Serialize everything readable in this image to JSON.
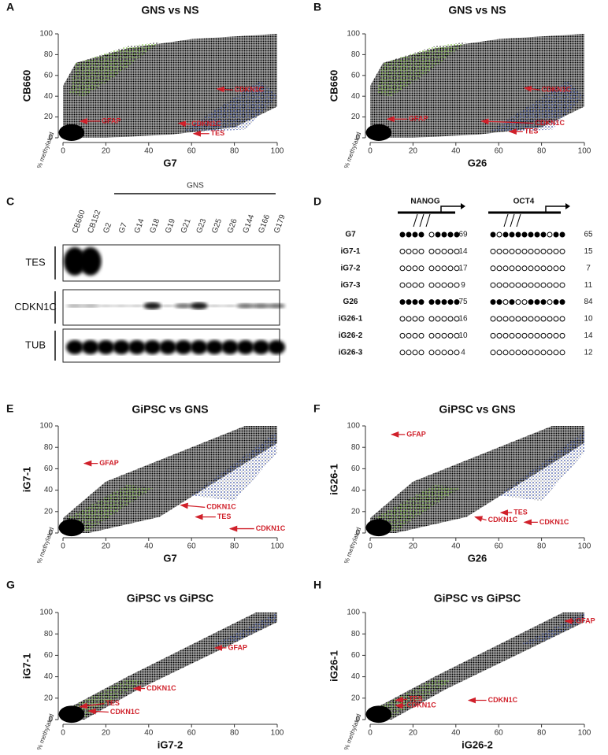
{
  "chart_data": [
    {
      "type": "scatter",
      "panel": "A",
      "title": "GNS vs NS",
      "xlabel": "G7",
      "ylabel": "CB660",
      "note": "% methylated",
      "xlim": [
        0,
        100
      ],
      "ylim": [
        0,
        100
      ],
      "xticks": [
        0,
        20,
        40,
        60,
        80,
        100
      ],
      "yticks": [
        0,
        20,
        40,
        60,
        80,
        100
      ],
      "annotations": [
        "GFAP",
        "CDKN1C",
        "CDKN1C",
        "TES"
      ]
    },
    {
      "type": "scatter",
      "panel": "B",
      "title": "GNS vs NS",
      "xlabel": "G26",
      "ylabel": "CB660",
      "note": "% methylated",
      "xlim": [
        0,
        100
      ],
      "ylim": [
        0,
        100
      ],
      "xticks": [
        0,
        20,
        40,
        60,
        80,
        100
      ],
      "yticks": [
        0,
        20,
        40,
        60,
        80,
        100
      ],
      "annotations": [
        "GFAP",
        "CDKN1C",
        "CDKN1C",
        "TES"
      ]
    },
    {
      "type": "scatter",
      "panel": "E",
      "title": "GiPSC vs GNS",
      "xlabel": "G7",
      "ylabel": "iG7-1",
      "note": "% methylated",
      "xlim": [
        0,
        100
      ],
      "ylim": [
        0,
        100
      ],
      "xticks": [
        0,
        20,
        40,
        60,
        80,
        100
      ],
      "yticks": [
        0,
        20,
        40,
        60,
        80,
        100
      ],
      "annotations": [
        "GFAP",
        "CDKN1C",
        "TES",
        "CDKN1C"
      ]
    },
    {
      "type": "scatter",
      "panel": "F",
      "title": "GiPSC vs GNS",
      "xlabel": "G26",
      "ylabel": "iG26-1",
      "note": "% methylated",
      "xlim": [
        0,
        100
      ],
      "ylim": [
        0,
        100
      ],
      "xticks": [
        0,
        20,
        40,
        60,
        80,
        100
      ],
      "yticks": [
        0,
        20,
        40,
        60,
        80,
        100
      ],
      "annotations": [
        "GFAP",
        "TES",
        "CDKN1C",
        "CDKN1C"
      ]
    },
    {
      "type": "scatter",
      "panel": "G",
      "title": "GiPSC vs GiPSC",
      "xlabel": "iG7-2",
      "ylabel": "iG7-1",
      "note": "% methylated",
      "xlim": [
        0,
        100
      ],
      "ylim": [
        0,
        100
      ],
      "xticks": [
        0,
        20,
        40,
        60,
        80,
        100
      ],
      "yticks": [
        0,
        20,
        40,
        60,
        80,
        100
      ],
      "annotations": [
        "GFAP",
        "CDKN1C",
        "TES",
        "CDKN1C"
      ]
    },
    {
      "type": "scatter",
      "panel": "H",
      "title": "GiPSC vs GiPSC",
      "xlabel": "iG26-2",
      "ylabel": "iG26-1",
      "note": "% methylated",
      "xlim": [
        0,
        100
      ],
      "ylim": [
        0,
        100
      ],
      "xticks": [
        0,
        20,
        40,
        60,
        80,
        100
      ],
      "yticks": [
        0,
        20,
        40,
        60,
        80,
        100
      ],
      "annotations": [
        "GFAP",
        "CDKN1C",
        "TES",
        "CDKN1C"
      ]
    }
  ],
  "blot": {
    "panel": "C",
    "group_label": "GNS",
    "lanes": [
      "CB660",
      "CB152",
      "G2",
      "G7",
      "G14",
      "G18",
      "G19",
      "G21",
      "G23",
      "G25",
      "G26",
      "G144",
      "G166",
      "G179"
    ],
    "bands": [
      "TES",
      "CDKN1C",
      "TUB"
    ]
  },
  "methylation": {
    "panel": "D",
    "genes": [
      "NANOG",
      "OCT4"
    ],
    "rows": [
      {
        "name": "G7",
        "nanog": [
          1,
          1,
          1,
          1,
          0,
          1,
          1,
          1,
          1
        ],
        "nanog_pct": 69,
        "oct4": [
          1,
          0,
          1,
          1,
          1,
          1,
          1,
          1,
          1,
          0,
          1,
          1
        ],
        "oct4_pct": 65
      },
      {
        "name": "iG7-1",
        "nanog": [
          0,
          0,
          0,
          0,
          0,
          0,
          0,
          0,
          0
        ],
        "nanog_pct": 14,
        "oct4": [
          0,
          0,
          0,
          0,
          0,
          0,
          0,
          0,
          0,
          0,
          0,
          0
        ],
        "oct4_pct": 15
      },
      {
        "name": "iG7-2",
        "nanog": [
          0,
          0,
          0,
          0,
          0,
          0,
          0,
          0,
          0
        ],
        "nanog_pct": 17,
        "oct4": [
          0,
          0,
          0,
          0,
          0,
          0,
          0,
          0,
          0,
          0,
          0,
          0
        ],
        "oct4_pct": 7
      },
      {
        "name": "iG7-3",
        "nanog": [
          0,
          0,
          0,
          0,
          0,
          0,
          0,
          0,
          0
        ],
        "nanog_pct": 9,
        "oct4": [
          0,
          0,
          0,
          0,
          0,
          0,
          0,
          0,
          0,
          0,
          0,
          0
        ],
        "oct4_pct": 11
      },
      {
        "name": "G26",
        "nanog": [
          1,
          1,
          1,
          1,
          1,
          1,
          1,
          1,
          1
        ],
        "nanog_pct": 75,
        "oct4": [
          1,
          1,
          0,
          1,
          0,
          0,
          1,
          1,
          1,
          0,
          1,
          1
        ],
        "oct4_pct": 84
      },
      {
        "name": "iG26-1",
        "nanog": [
          0,
          0,
          0,
          0,
          0,
          0,
          0,
          0,
          0
        ],
        "nanog_pct": 16,
        "oct4": [
          0,
          0,
          0,
          0,
          0,
          0,
          0,
          0,
          0,
          0,
          0,
          0
        ],
        "oct4_pct": 10
      },
      {
        "name": "iG26-2",
        "nanog": [
          0,
          0,
          0,
          0,
          0,
          0,
          0,
          0,
          0
        ],
        "nanog_pct": 10,
        "oct4": [
          0,
          0,
          0,
          0,
          0,
          0,
          0,
          0,
          0,
          0,
          0,
          0
        ],
        "oct4_pct": 14
      },
      {
        "name": "iG26-3",
        "nanog": [
          0,
          0,
          0,
          0,
          0,
          0,
          0,
          0,
          0
        ],
        "nanog_pct": 4,
        "oct4": [
          0,
          0,
          0,
          0,
          0,
          0,
          0,
          0,
          0,
          0,
          0,
          0
        ],
        "oct4_pct": 12
      }
    ]
  }
}
